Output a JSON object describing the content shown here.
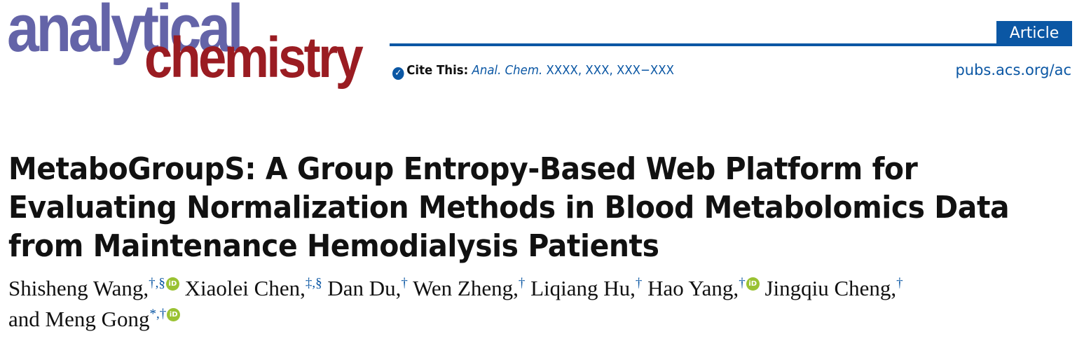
{
  "journal": {
    "logo_line1": "analytical",
    "logo_line2": "chemistry",
    "brand_purple": "#6464a8",
    "brand_red": "#9a1c22",
    "accent": "#0b57a4"
  },
  "header": {
    "article_type": "Article",
    "cite_label": "Cite This:",
    "cite_journal": "Anal. Chem.",
    "cite_ref": " XXXX, XXX, XXX−XXX",
    "url": "pubs.acs.org/ac"
  },
  "title_lines": [
    "MetaboGroupS: A Group Entropy-Based Web Platform for",
    "Evaluating Normalization Methods in Blood Metabolomics Data",
    "from Maintenance Hemodialysis Patients"
  ],
  "authors_line1": [
    {
      "name": "Shisheng Wang,",
      "affil": "†,§",
      "orcid": true
    },
    {
      "name": "Xiaolei Chen,",
      "affil": "‡,§",
      "orcid": false
    },
    {
      "name": "Dan Du,",
      "affil": "†",
      "orcid": false
    },
    {
      "name": "Wen Zheng,",
      "affil": "†",
      "orcid": false
    },
    {
      "name": "Liqiang Hu,",
      "affil": "†",
      "orcid": false
    },
    {
      "name": "Hao Yang,",
      "affil": "†",
      "orcid": true
    },
    {
      "name": "Jingqiu Cheng,",
      "affil": "†",
      "orcid": false
    }
  ],
  "authors_line2": [
    {
      "name": "and Meng Gong",
      "affil": "*,†",
      "orcid": true
    }
  ],
  "orcid_label": "iD"
}
